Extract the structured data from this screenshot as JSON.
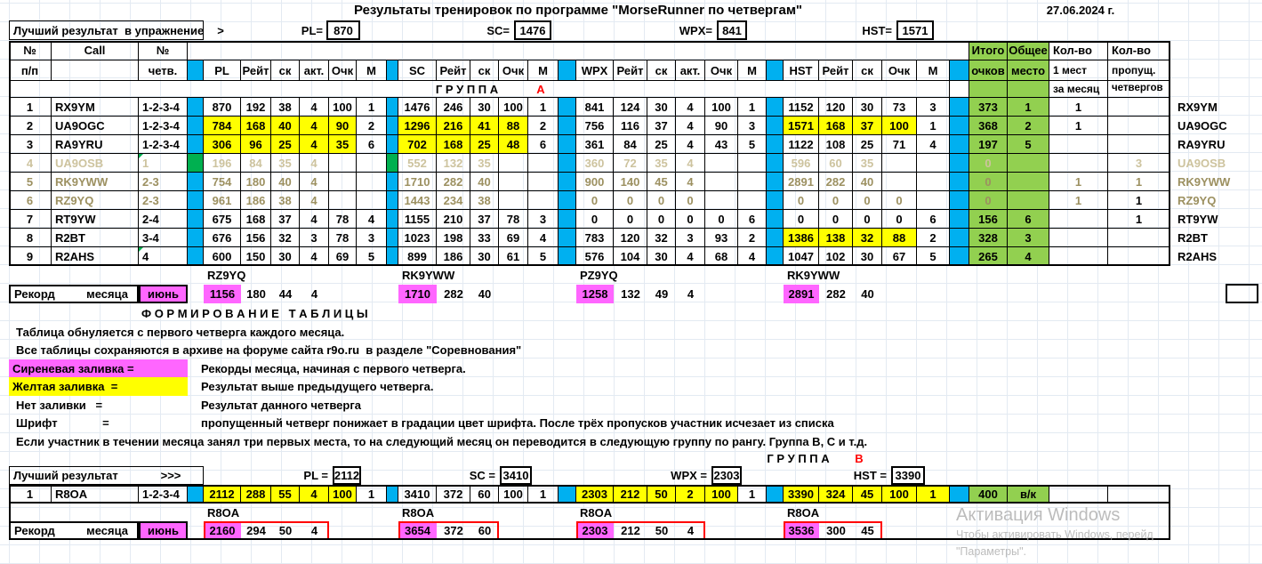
{
  "title": "Результаты тренировок по программе \"MorseRunner по четвергам\"",
  "date": "27.06.2024 г.",
  "colors": {
    "blue": "#00b0f0",
    "green": "#92d050",
    "sepgreen": "#00b050",
    "yellow": "#ffff00",
    "pink": "#ff66ff",
    "red": "#ff0000",
    "fade1": "#9c9060",
    "fade2": "#cdc39e"
  },
  "headers": {
    "num1": "№",
    "num2": "п/п",
    "call": "Call",
    "chetv1": "№",
    "chetv2": "четв.",
    "pl": [
      "PL",
      "Рейт",
      "ск",
      "акт.",
      "Очк",
      "М"
    ],
    "sc": [
      "SC",
      "Рейт",
      "ск",
      "Очк",
      "М"
    ],
    "wpx": [
      "WPX",
      "Рейт",
      "ск",
      "акт.",
      "Очк",
      "М"
    ],
    "hst": [
      "HST",
      "Рейт",
      "ск",
      "Очк",
      "М"
    ],
    "total1": "Итого",
    "total2": "очков",
    "place1": "Общее",
    "place2": "место",
    "firsts1": "Кол-во",
    "firsts2": "1 мест",
    "firsts3": "за месяц",
    "missed1": "Кол-во",
    "missed2": "пропущ.",
    "missed3": "четвергов"
  },
  "bestA": {
    "label": "Лучший результат  в упражнение",
    "arrow": ">",
    "items": [
      {
        "k": "PL=",
        "v": "870"
      },
      {
        "k": "SC=",
        "v": "1476"
      },
      {
        "k": "WPX=",
        "v": "841"
      },
      {
        "k": "HST=",
        "v": "1571"
      }
    ]
  },
  "groupA": {
    "label": "Г Р У П П А",
    "letter": "А",
    "rows": [
      {
        "n": "1",
        "call": "RX9YM",
        "chetv": "1-2-3-4",
        "fade": 0,
        "tri": false,
        "sep_green": false,
        "pl": [
          "870",
          "192",
          "38",
          "4",
          "100"
        ],
        "pl_m": "1",
        "pl_y": false,
        "sc": [
          "1476",
          "246",
          "30",
          "100"
        ],
        "sc_m": "1",
        "sc_y": false,
        "wpx": [
          "841",
          "124",
          "30",
          "4",
          "100"
        ],
        "wpx_m": "1",
        "wpx_y": false,
        "hst": [
          "1152",
          "120",
          "30",
          "73"
        ],
        "hst_m": "3",
        "hst_y": false,
        "total": "373",
        "place": "1",
        "firsts": "1",
        "missed": "",
        "call_r": "RX9YM"
      },
      {
        "n": "2",
        "call": "UA9OGC",
        "chetv": "1-2-3-4",
        "fade": 0,
        "tri": false,
        "sep_green": false,
        "pl": [
          "784",
          "168",
          "40",
          "4",
          "90"
        ],
        "pl_m": "2",
        "pl_y": true,
        "sc": [
          "1296",
          "216",
          "41",
          "88"
        ],
        "sc_m": "2",
        "sc_y": true,
        "wpx": [
          "756",
          "116",
          "37",
          "4",
          "90"
        ],
        "wpx_m": "3",
        "wpx_y": false,
        "hst": [
          "1571",
          "168",
          "37",
          "100"
        ],
        "hst_m": "1",
        "hst_y": true,
        "total": "368",
        "place": "2",
        "firsts": "1",
        "missed": "",
        "call_r": "UA9OGC"
      },
      {
        "n": "3",
        "call": "RA9YRU",
        "chetv": "1-2-3-4",
        "fade": 0,
        "tri": false,
        "sep_green": false,
        "pl": [
          "306",
          "96",
          "25",
          "4",
          "35"
        ],
        "pl_m": "6",
        "pl_y": true,
        "sc": [
          "702",
          "168",
          "25",
          "48"
        ],
        "sc_m": "6",
        "sc_y": true,
        "wpx": [
          "361",
          "84",
          "25",
          "4",
          "43"
        ],
        "wpx_m": "5",
        "wpx_y": false,
        "hst": [
          "1122",
          "108",
          "25",
          "71"
        ],
        "hst_m": "4",
        "hst_y": false,
        "total": "197",
        "place": "5",
        "firsts": "",
        "missed": "",
        "call_r": "RA9YRU"
      },
      {
        "n": "4",
        "call": "UA9OSB",
        "chetv": "1",
        "fade": 2,
        "tri": true,
        "sep_green": true,
        "pl": [
          "196",
          "84",
          "35",
          "4",
          ""
        ],
        "pl_m": "",
        "pl_y": false,
        "sc": [
          "552",
          "132",
          "35",
          ""
        ],
        "sc_m": "",
        "sc_y": false,
        "wpx": [
          "360",
          "72",
          "35",
          "4",
          ""
        ],
        "wpx_m": "",
        "wpx_y": false,
        "hst": [
          "596",
          "60",
          "35",
          ""
        ],
        "hst_m": "",
        "hst_y": false,
        "total": "0",
        "place": "",
        "firsts": "",
        "missed": "3",
        "missed_fade": true,
        "call_r": "UA9OSB"
      },
      {
        "n": "5",
        "call": "RK9YWW",
        "chetv": "2-3",
        "fade": 1,
        "tri": false,
        "sep_green": false,
        "pl": [
          "754",
          "180",
          "40",
          "4",
          ""
        ],
        "pl_m": "",
        "pl_y": false,
        "sc": [
          "1710",
          "282",
          "40",
          ""
        ],
        "sc_m": "",
        "sc_y": false,
        "wpx": [
          "900",
          "140",
          "45",
          "4",
          ""
        ],
        "wpx_m": "",
        "wpx_y": false,
        "hst": [
          "2891",
          "282",
          "40",
          ""
        ],
        "hst_m": "",
        "hst_y": false,
        "total": "0",
        "place": "",
        "firsts": "1",
        "firsts_fade": true,
        "missed": "1",
        "missed_fade": true,
        "call_r": "RK9YWW"
      },
      {
        "n": "6",
        "call": "RZ9YQ",
        "chetv": "2-3",
        "fade": 1,
        "tri": false,
        "sep_green": false,
        "pl": [
          "961",
          "186",
          "38",
          "4",
          ""
        ],
        "pl_m": "",
        "pl_y": false,
        "sc": [
          "1443",
          "234",
          "38",
          ""
        ],
        "sc_m": "",
        "sc_y": false,
        "wpx": [
          "0",
          "0",
          "0",
          "0",
          ""
        ],
        "wpx_m": "",
        "wpx_y": false,
        "hst": [
          "0",
          "0",
          "0",
          "0"
        ],
        "hst_m": "",
        "hst_y": false,
        "total": "0",
        "place": "",
        "firsts": "1",
        "firsts_fade": true,
        "missed": "1",
        "call_r": "RZ9YQ"
      },
      {
        "n": "7",
        "call": "RT9YW",
        "chetv": "2-4",
        "fade": 0,
        "tri": false,
        "sep_green": false,
        "pl": [
          "675",
          "168",
          "37",
          "4",
          "78"
        ],
        "pl_m": "4",
        "pl_y": false,
        "sc": [
          "1155",
          "210",
          "37",
          "78"
        ],
        "sc_m": "3",
        "sc_y": false,
        "wpx": [
          "0",
          "0",
          "0",
          "0",
          "0"
        ],
        "wpx_m": "6",
        "wpx_y": false,
        "hst": [
          "0",
          "0",
          "0",
          "0"
        ],
        "hst_m": "6",
        "hst_y": false,
        "total": "156",
        "place": "6",
        "firsts": "",
        "missed": "1",
        "call_r": "RT9YW"
      },
      {
        "n": "8",
        "call": "R2BT",
        "chetv": "3-4",
        "fade": 0,
        "tri": false,
        "sep_green": false,
        "pl": [
          "676",
          "156",
          "32",
          "3",
          "78"
        ],
        "pl_m": "3",
        "pl_y": false,
        "sc": [
          "1023",
          "198",
          "33",
          "69"
        ],
        "sc_m": "4",
        "sc_y": false,
        "wpx": [
          "783",
          "120",
          "32",
          "3",
          "93"
        ],
        "wpx_m": "2",
        "wpx_y": false,
        "hst": [
          "1386",
          "138",
          "32",
          "88"
        ],
        "hst_m": "2",
        "hst_y": true,
        "total": "328",
        "place": "3",
        "firsts": "",
        "missed": "",
        "call_r": "R2BT"
      },
      {
        "n": "9",
        "call": "R2AHS",
        "chetv": "4",
        "fade": 0,
        "tri": true,
        "sep_green": false,
        "pl": [
          "600",
          "150",
          "30",
          "4",
          "69"
        ],
        "pl_m": "5",
        "pl_y": false,
        "sc": [
          "899",
          "186",
          "30",
          "61"
        ],
        "sc_m": "5",
        "sc_y": false,
        "wpx": [
          "576",
          "104",
          "30",
          "4",
          "68"
        ],
        "wpx_m": "4",
        "wpx_y": false,
        "hst": [
          "1047",
          "102",
          "30",
          "67"
        ],
        "hst_m": "5",
        "hst_y": false,
        "total": "265",
        "place": "4",
        "firsts": "",
        "missed": "",
        "call_r": "R2AHS"
      }
    ]
  },
  "recordA": {
    "label1": "Рекорд",
    "label2": "месяца",
    "month": "июнь",
    "holders": [
      "RZ9YQ",
      "RK9YWW",
      "PZ9YQ",
      "RK9YWW"
    ],
    "pl": [
      "1156",
      "180",
      "44",
      "4"
    ],
    "sc": [
      "1710",
      "282",
      "40"
    ],
    "wpx": [
      "1258",
      "132",
      "49",
      "4"
    ],
    "hst": [
      "2891",
      "282",
      "40"
    ]
  },
  "legend": {
    "heading": "Ф О Р М И Р О В А Н И Е   Т А Б Л И Ц Ы",
    "line1": "Таблица обнуляется с первого четверга каждого месяца.",
    "line2": "Все таблицы сохраняются в архиве на форуме сайта r9o.ru  в разделе \"Соревнования\"",
    "sw1_label": "Сиреневая заливка =",
    "sw1_text": "Рекорды месяца, начиная с первого четверга.",
    "sw2_label": "Желтая заливка  =",
    "sw2_text": "Результат выше предыдущего четверга.",
    "sw3_label": "Нет заливки   =",
    "sw3_text": "Результат данного четверга",
    "sw4_label": "Шрифт              =",
    "sw4_text": "пропущенный четверг понижает в градации цвет шрифта. После трёх пропусков участник исчезает из списка",
    "note": "Если участник в течении месяца занял три первых места, то на следующий месяц он переводится в следующую группу по рангу. Группа В, С и т.д."
  },
  "groupB": {
    "label": "Г Р У П П А",
    "letter": "В",
    "best": {
      "label": "Лучший результат",
      "arrow": ">>>",
      "items": [
        {
          "k": "PL =",
          "v": "2112"
        },
        {
          "k": "SC =",
          "v": "3410"
        },
        {
          "k": "WPX =",
          "v": "2303"
        },
        {
          "k": "HST =",
          "v": "3390"
        }
      ]
    },
    "row": {
      "n": "1",
      "call": "R8OA",
      "chetv": "1-2-3-4",
      "pl": [
        "2112",
        "288",
        "55",
        "4",
        "100"
      ],
      "pl_m": "1",
      "pl_y": true,
      "sc": [
        "3410",
        "372",
        "60",
        "100"
      ],
      "sc_m": "1",
      "sc_y": false,
      "wpx": [
        "2303",
        "212",
        "50",
        "2",
        "100"
      ],
      "wpx_m": "1",
      "wpx_y": true,
      "hst": [
        "3390",
        "324",
        "45",
        "100"
      ],
      "hst_m": "1",
      "hst_y": true,
      "total": "400",
      "place": "в/к"
    },
    "record": {
      "label1": "Рекорд",
      "label2": "месяца",
      "month": "июнь",
      "holders": [
        "R8OA",
        "R8OA",
        "R8OA",
        "R8OA"
      ],
      "pl": [
        "2160",
        "294",
        "50",
        "4"
      ],
      "sc": [
        "3654",
        "372",
        "60"
      ],
      "wpx": [
        "2303",
        "212",
        "50",
        "4"
      ],
      "hst": [
        "3536",
        "300",
        "45"
      ]
    }
  },
  "watermark": {
    "line1": "Активация Windows",
    "line2": "Чтобы активировать Windows, перейд",
    "line3": "\"Параметры\"."
  }
}
